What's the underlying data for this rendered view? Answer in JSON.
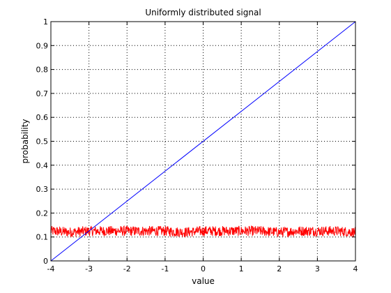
{
  "chart_data": {
    "type": "line",
    "title": "Uniformly distributed signal",
    "xlabel": "value",
    "ylabel": "probability",
    "xlim": [
      -4,
      4
    ],
    "ylim": [
      0,
      1
    ],
    "xticks": [
      "-4",
      "-3",
      "-2",
      "-1",
      "0",
      "1",
      "2",
      "3",
      "4"
    ],
    "yticks": [
      "0",
      "0.1",
      "0.2",
      "0.3",
      "0.4",
      "0.5",
      "0.6",
      "0.7",
      "0.8",
      "0.9",
      "1"
    ],
    "grid": true,
    "series": [
      {
        "color": "#0000ff",
        "style": "solid line",
        "x": [
          -4,
          4
        ],
        "y": [
          0,
          1
        ]
      },
      {
        "color": "#ff0000",
        "style": "noisy line",
        "x": [
          -4,
          -3.5,
          -3,
          -2.5,
          -2,
          -1.5,
          -1,
          -0.5,
          0,
          0.5,
          1,
          1.5,
          2,
          2.5,
          3,
          3.5,
          4
        ],
        "y": [
          0.125,
          0.12,
          0.125,
          0.125,
          0.125,
          0.125,
          0.125,
          0.12,
          0.125,
          0.125,
          0.125,
          0.125,
          0.12,
          0.125,
          0.125,
          0.125,
          0.12
        ],
        "range": [
          0.1,
          0.15
        ]
      }
    ]
  }
}
